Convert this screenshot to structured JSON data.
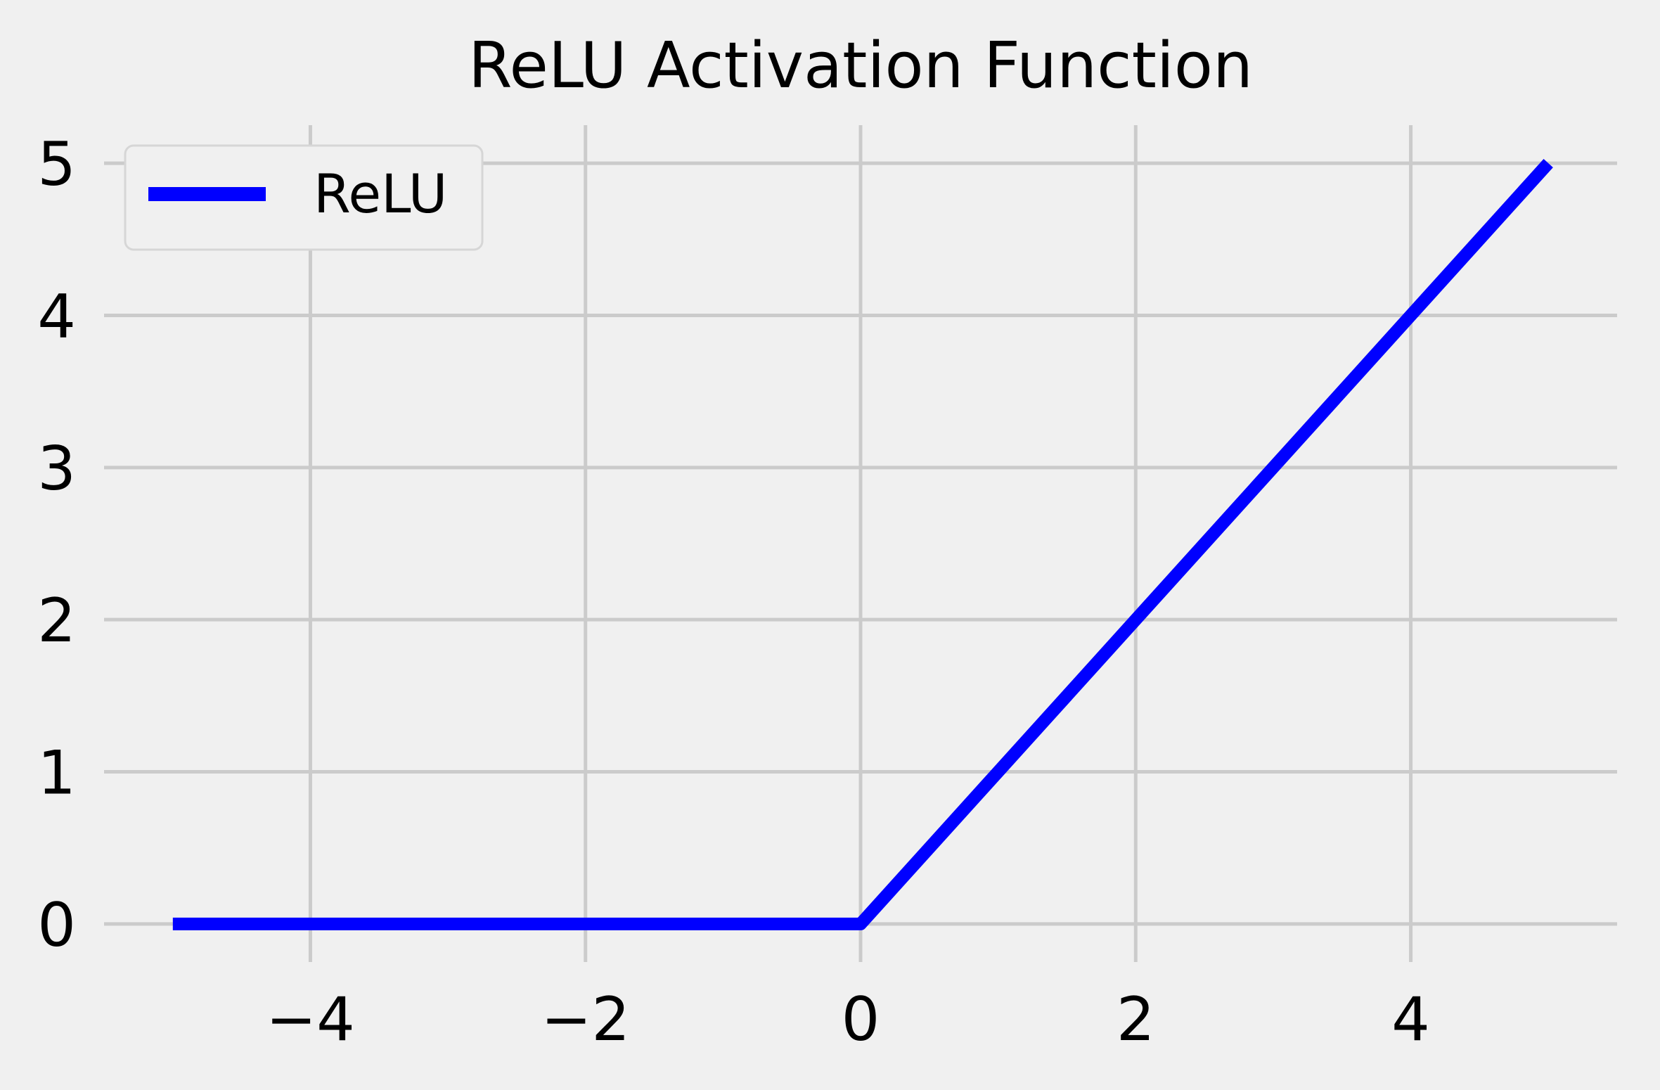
{
  "chart_data": {
    "type": "line",
    "title": "ReLU Activation Function",
    "xlabel": "",
    "ylabel": "",
    "xlim": [
      -5.5,
      5.5
    ],
    "ylim": [
      -0.25,
      5.25
    ],
    "x_ticks": [
      -4,
      -2,
      0,
      2,
      4
    ],
    "x_tick_labels": [
      "−4",
      "−2",
      "0",
      "2",
      "4"
    ],
    "y_ticks": [
      0,
      1,
      2,
      3,
      4,
      5
    ],
    "y_tick_labels": [
      "0",
      "1",
      "2",
      "3",
      "4",
      "5"
    ],
    "grid": true,
    "legend": {
      "position": "top-left"
    },
    "series": [
      {
        "name": "ReLU",
        "color": "#0000ff",
        "x": [
          -5,
          -4,
          -3,
          -2,
          -1,
          0,
          1,
          2,
          3,
          4,
          5
        ],
        "y": [
          0,
          0,
          0,
          0,
          0,
          0,
          1,
          2,
          3,
          4,
          5
        ]
      }
    ]
  }
}
